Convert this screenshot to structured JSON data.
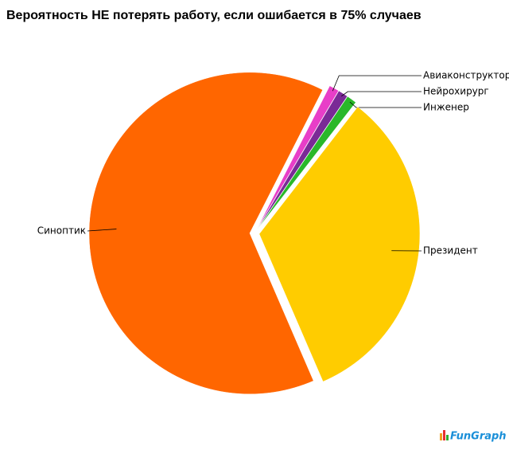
{
  "chart_data": {
    "type": "pie",
    "title": "Вероятность НЕ потерять работу, если ошибается в 75% случаев",
    "categories": [
      "Авиаконструктор",
      "Нейрохирург",
      "Инженер",
      "Президент",
      "Синоптик"
    ],
    "values": [
      1,
      1,
      1,
      33,
      64
    ],
    "colors": [
      "#e83ec8",
      "#7a2a96",
      "#2ab82a",
      "#ffcc00",
      "#ff6600"
    ],
    "logo": "FunGraph"
  }
}
